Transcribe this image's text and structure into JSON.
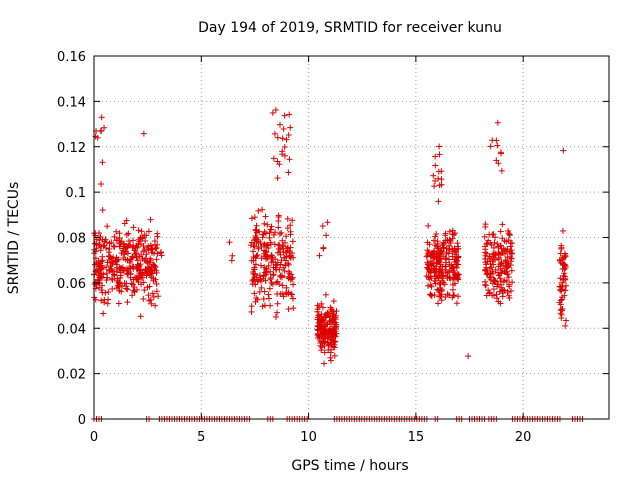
{
  "chart_data": {
    "type": "scatter",
    "title": "Day 194 of 2019, SRMTID for receiver kunu",
    "xlabel": "GPS time / hours",
    "ylabel": "SRMTID / TECUs",
    "xlim": [
      0,
      24
    ],
    "ylim": [
      0,
      0.16
    ],
    "xticks": [
      0,
      5,
      10,
      15,
      20
    ],
    "yticks": [
      0,
      0.02,
      0.04,
      0.06,
      0.08,
      0.1,
      0.12,
      0.14,
      0.16
    ],
    "ytick_labels": [
      "0",
      "0.02",
      "0.04",
      "0.06",
      "0.08",
      "0.1",
      "0.12",
      "0.14",
      "0.16"
    ],
    "grid": true,
    "marker": "plus",
    "series": [
      {
        "name": "SRMTID",
        "color": "#dd0000",
        "clusters": [
          {
            "x_range": [
              0.0,
              3.0
            ],
            "y_center": 0.068,
            "y_spread": 0.013,
            "count": 360
          },
          {
            "x_range": [
              0.05,
              0.5
            ],
            "y_center": 0.12,
            "y_spread": 0.018,
            "count": 10
          },
          {
            "x_range": [
              2.2,
              2.4
            ],
            "y_center": 0.126,
            "y_spread": 0.001,
            "count": 1
          },
          {
            "x_range": [
              3.1,
              3.15
            ],
            "y_center": 0.073,
            "y_spread": 0.005,
            "count": 3
          },
          {
            "x_range": [
              6.3,
              6.45
            ],
            "y_center": 0.074,
            "y_spread": 0.004,
            "count": 3
          },
          {
            "x_range": [
              7.3,
              9.3
            ],
            "y_center": 0.07,
            "y_spread": 0.016,
            "count": 230
          },
          {
            "x_range": [
              8.3,
              9.2
            ],
            "y_center": 0.123,
            "y_spread": 0.014,
            "count": 22
          },
          {
            "x_range": [
              10.4,
              11.3
            ],
            "y_center": 0.04,
            "y_spread": 0.009,
            "count": 170
          },
          {
            "x_range": [
              10.5,
              10.9
            ],
            "y_center": 0.075,
            "y_spread": 0.01,
            "count": 6
          },
          {
            "x_range": [
              15.5,
              17.0
            ],
            "y_center": 0.068,
            "y_spread": 0.013,
            "count": 230
          },
          {
            "x_range": [
              15.8,
              16.2
            ],
            "y_center": 0.108,
            "y_spread": 0.01,
            "count": 14
          },
          {
            "x_range": [
              17.4,
              17.6
            ],
            "y_center": 0.028,
            "y_spread": 0.001,
            "count": 1
          },
          {
            "x_range": [
              18.2,
              19.5
            ],
            "y_center": 0.068,
            "y_spread": 0.014,
            "count": 170
          },
          {
            "x_range": [
              18.4,
              19.1
            ],
            "y_center": 0.118,
            "y_spread": 0.012,
            "count": 10
          },
          {
            "x_range": [
              21.7,
              22.0
            ],
            "y_center": 0.062,
            "y_spread": 0.017,
            "count": 55
          },
          {
            "x_range": [
              21.8,
              21.95
            ],
            "y_center": 0.119,
            "y_spread": 0.001,
            "count": 1
          }
        ],
        "zero_line_segments": [
          [
            0.0,
            0.35
          ],
          [
            2.45,
            2.6
          ],
          [
            3.05,
            7.3
          ],
          [
            8.1,
            8.35
          ],
          [
            9.0,
            10.0
          ],
          [
            11.2,
            15.55
          ],
          [
            15.9,
            16.1
          ],
          [
            16.9,
            17.2
          ],
          [
            17.5,
            18.2
          ],
          [
            18.4,
            18.8
          ],
          [
            19.5,
            21.8
          ],
          [
            22.3,
            22.8
          ]
        ]
      }
    ]
  }
}
